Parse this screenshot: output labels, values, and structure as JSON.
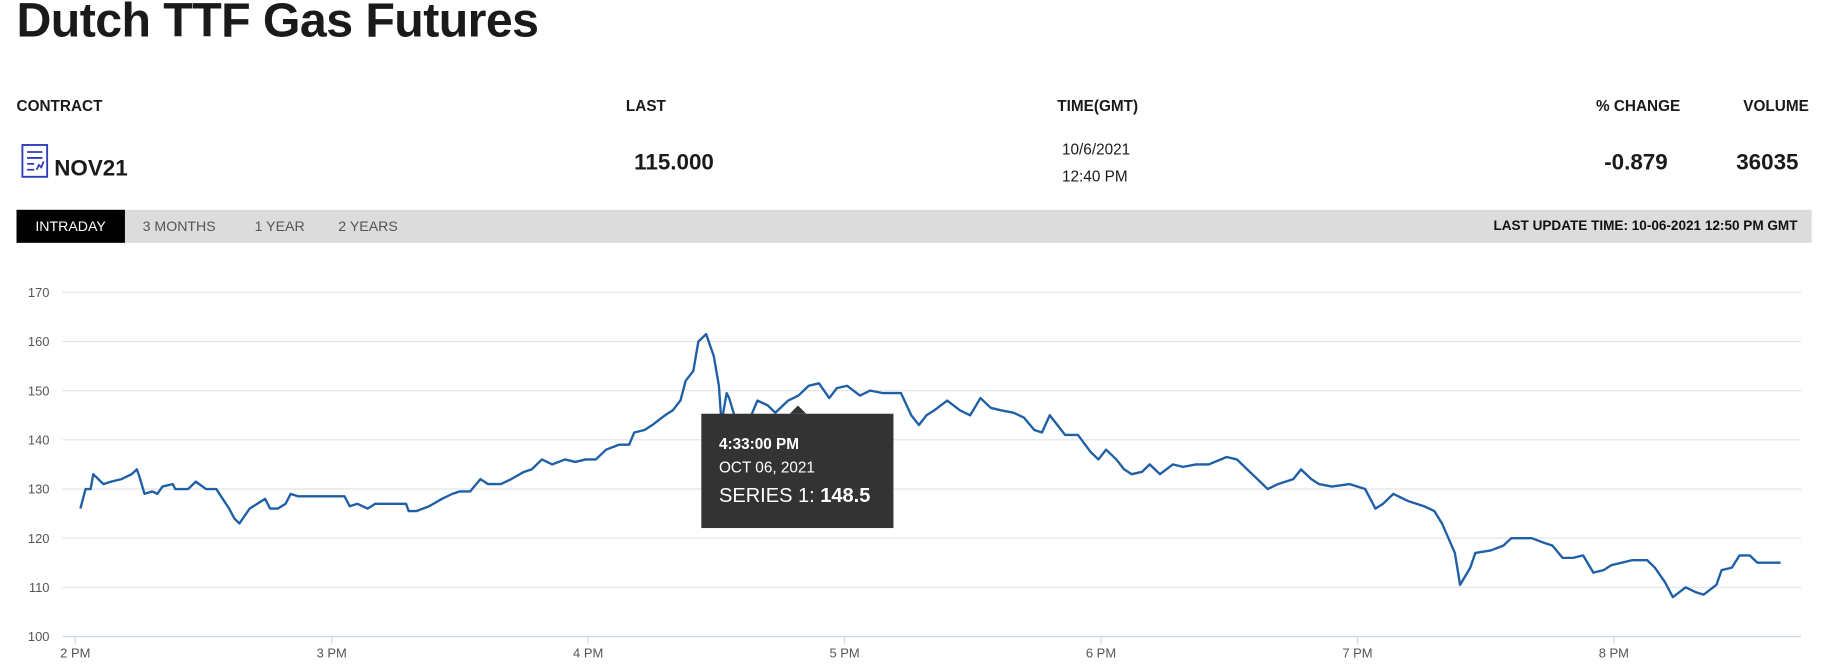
{
  "header": {
    "title": "Dutch TTF Gas Futures"
  },
  "table": {
    "columns": [
      "CONTRACT",
      "LAST",
      "TIME(GMT)",
      "% CHANGE",
      "VOLUME"
    ],
    "row": {
      "contract": "NOV21",
      "last": "115.000",
      "date": "10/6/2021",
      "time": "12:40 PM",
      "change": "-0.879",
      "volume": "36035"
    }
  },
  "tabs": [
    "INTRADAY",
    "3 MONTHS",
    "1 YEAR",
    "2 YEARS"
  ],
  "last_update": "LAST UPDATE TIME: 10-06-2021 12:50 PM GMT",
  "tooltip": {
    "time": "4:33:00 PM",
    "date": "OCT 06, 2021",
    "series_label": "SERIES 1:",
    "value": 148.5
  },
  "chart_data": {
    "type": "line",
    "xlim": [
      13.95,
      20.73
    ],
    "ylim": [
      100,
      170
    ],
    "yticks": [
      100,
      110,
      120,
      130,
      140,
      150,
      160,
      170
    ],
    "xticks": [
      {
        "value": 14,
        "label": "2 PM"
      },
      {
        "value": 15,
        "label": "3 PM"
      },
      {
        "value": 16,
        "label": "4 PM"
      },
      {
        "value": 17,
        "label": "5 PM"
      },
      {
        "value": 18,
        "label": "6 PM"
      },
      {
        "value": 19,
        "label": "7 PM"
      },
      {
        "value": 20,
        "label": "8 PM"
      }
    ],
    "grid": true,
    "series": [
      {
        "color": "#1f5fa6",
        "x": [
          14.02,
          14.04,
          14.06,
          14.07,
          14.11,
          14.14,
          14.18,
          14.22,
          14.24,
          14.25,
          14.27,
          14.3,
          14.32,
          14.34,
          14.38,
          14.39,
          14.44,
          14.47,
          14.51,
          14.55,
          14.6,
          14.62,
          14.64,
          14.68,
          14.71,
          14.74,
          14.76,
          14.79,
          14.82,
          14.84,
          14.87,
          14.92,
          14.97,
          15.05,
          15.07,
          15.1,
          15.14,
          15.17,
          15.22,
          15.29,
          15.3,
          15.33,
          15.38,
          15.43,
          15.47,
          15.5,
          15.54,
          15.58,
          15.61,
          15.66,
          15.7,
          15.75,
          15.78,
          15.82,
          15.86,
          15.91,
          15.95,
          15.99,
          16.03,
          16.07,
          16.12,
          16.16,
          16.18,
          16.22,
          16.25,
          16.3,
          16.33,
          16.36,
          16.38,
          16.41,
          16.43,
          16.46,
          16.49,
          16.51,
          16.52,
          16.54,
          16.55,
          16.57,
          16.62,
          16.66,
          16.7,
          16.73,
          16.78,
          16.82,
          16.86,
          16.9,
          16.94,
          16.97,
          17.01,
          17.06,
          17.1,
          17.15,
          17.22,
          17.26,
          17.29,
          17.32,
          17.35,
          17.4,
          17.45,
          17.49,
          17.53,
          17.57,
          17.61,
          17.66,
          17.7,
          17.74,
          17.77,
          17.8,
          17.83,
          17.86,
          17.91,
          17.96,
          17.99,
          18.02,
          18.06,
          18.09,
          18.12,
          18.16,
          18.19,
          18.23,
          18.28,
          18.32,
          18.37,
          18.42,
          18.49,
          18.53,
          18.57,
          18.61,
          18.65,
          18.69,
          18.75,
          18.78,
          18.82,
          18.85,
          18.9,
          18.97,
          19.03,
          19.07,
          19.1,
          19.14,
          19.2,
          19.26,
          19.3,
          19.33,
          19.38,
          19.4,
          19.44,
          19.46,
          19.52,
          19.57,
          19.6,
          19.68,
          19.73,
          19.76,
          19.8,
          19.84,
          19.88,
          19.92,
          19.96,
          19.99,
          20.03,
          20.07,
          20.13,
          20.16,
          20.2,
          20.23,
          20.28,
          20.32,
          20.35,
          20.4,
          20.42,
          20.46,
          20.49,
          20.53,
          20.56,
          20.65
        ],
        "values": [
          126,
          130,
          130,
          133,
          131,
          131.5,
          132,
          133,
          134,
          132.5,
          129,
          129.5,
          129,
          130.5,
          131,
          130,
          130,
          131.5,
          130,
          130,
          126,
          124,
          123,
          126,
          127,
          128,
          126,
          126,
          127,
          129,
          128.5,
          128.5,
          128.5,
          128.5,
          126.5,
          127,
          126,
          127,
          127,
          127,
          125.5,
          125.5,
          126.5,
          128,
          129,
          129.5,
          129.5,
          132,
          131,
          131,
          132,
          133.5,
          134,
          136,
          135,
          136,
          135.5,
          136,
          136,
          138,
          139,
          139,
          141.5,
          142,
          143,
          145,
          146,
          148,
          152,
          154,
          160,
          161.5,
          157,
          151,
          143.5,
          149.5,
          148.5,
          145,
          143,
          148,
          147,
          145.5,
          148,
          149,
          151,
          151.5,
          148.5,
          150.5,
          151,
          149,
          150,
          149.5,
          149.5,
          145,
          143,
          145,
          146,
          148,
          146,
          145,
          148.5,
          146.5,
          146,
          145.5,
          144.5,
          142,
          141.5,
          145,
          143,
          141,
          141,
          137.5,
          136,
          138,
          136,
          134,
          133,
          133.5,
          135,
          133,
          135,
          134.5,
          135,
          135,
          136.5,
          136,
          134,
          132,
          130,
          131,
          132,
          134,
          132,
          131,
          130.5,
          131,
          130,
          126,
          127,
          129,
          127.5,
          126.5,
          125.5,
          123,
          117,
          110.5,
          114,
          117,
          117.5,
          118.5,
          120,
          120,
          119,
          118.5,
          116,
          116,
          116.5,
          113,
          113.5,
          114.5,
          115,
          115.5,
          115.5,
          114,
          111,
          108,
          110,
          109,
          108.5,
          110.5,
          113.5,
          114,
          116.5,
          116.5,
          115,
          115
        ]
      }
    ]
  }
}
